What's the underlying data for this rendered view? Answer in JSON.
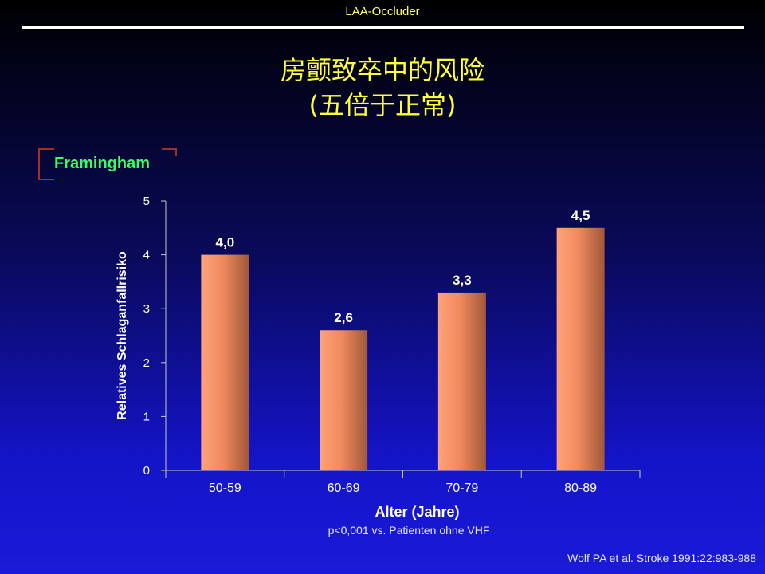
{
  "header": {
    "label": "LAA-Occluder"
  },
  "title": {
    "line1": "房颤致卒中的风险",
    "line2": "(五倍于正常)"
  },
  "study_label": "Framingham",
  "footnote": "p<0,001 vs. Patienten ohne VHF",
  "citation": "Wolf PA et al. Stroke 1991:22:983-988",
  "colors": {
    "bar_light": "#ffa27a",
    "bar_dark": "#a0583a",
    "title": "#ffff33",
    "study_label": "#33ff66",
    "header_label": "#ffff66"
  },
  "chart_data": {
    "type": "bar",
    "categories": [
      "50-59",
      "60-69",
      "70-79",
      "80-89"
    ],
    "values": [
      4.0,
      2.6,
      3.3,
      4.5
    ],
    "data_labels": [
      "4,0",
      "2,6",
      "3,3",
      "4,5"
    ],
    "xlabel": "Alter (Jahre)",
    "ylabel": "Relatives Schlaganfallrisiko",
    "ylim": [
      0,
      5
    ],
    "yticks": [
      0,
      1,
      2,
      3,
      4,
      5
    ],
    "grid": false,
    "legend": "none"
  }
}
